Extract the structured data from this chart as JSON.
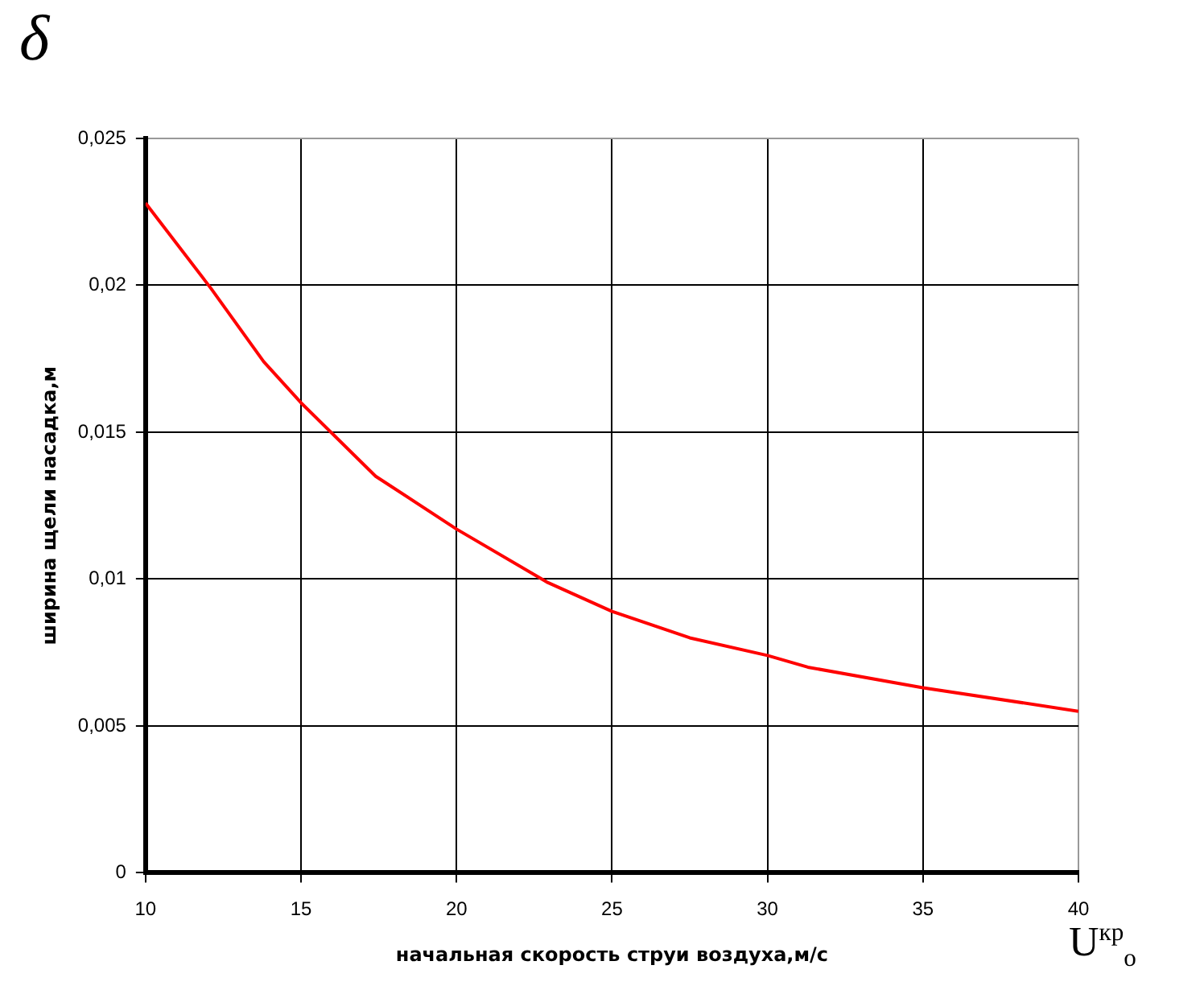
{
  "chart_data": {
    "type": "line",
    "xlabel": "начальная скорость струи воздуха,м/с",
    "ylabel": "ширина щели насадка,м",
    "annotations": [
      "δ",
      "U$^{кр}$$_{o}$"
    ],
    "x": [
      10,
      12.1,
      13.8,
      15,
      17.4,
      20,
      22.9,
      25,
      27.5,
      30,
      31.3,
      35,
      40
    ],
    "series": [
      {
        "color": "#ff0000",
        "values": [
          0.0228,
          0.0199,
          0.0174,
          0.016,
          0.0135,
          0.0117,
          0.0099,
          0.0089,
          0.008,
          0.0074,
          0.007,
          0.0063,
          0.0055
        ]
      }
    ],
    "xlim": [
      10,
      40
    ],
    "xticks": [
      10,
      15,
      20,
      25,
      30,
      35,
      40
    ],
    "ylim": [
      0,
      0.025
    ],
    "yticks": [
      0,
      {
        "value": 0.005,
        "label": "0,005"
      },
      {
        "value": 0.01,
        "label": "0,01"
      },
      {
        "value": 0.015,
        "label": "0,015"
      },
      {
        "value": 0.02,
        "label": "0,02"
      },
      {
        "value": 0.025,
        "label": "0,025"
      }
    ],
    "grid": true,
    "legend": false,
    "marker": "none",
    "line_style": "solid"
  }
}
